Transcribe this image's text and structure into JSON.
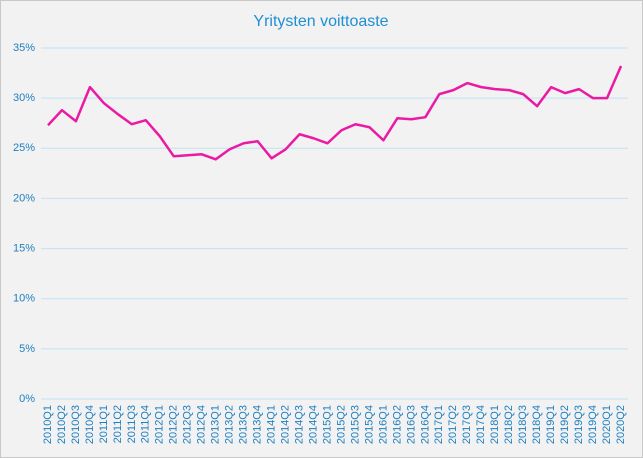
{
  "chart_data": {
    "type": "line",
    "title": "Yritysten voittoaste",
    "categories": [
      "2010Q1",
      "2010Q2",
      "2010Q3",
      "2010Q4",
      "2011Q1",
      "2011Q2",
      "2011Q3",
      "2011Q4",
      "2012Q1",
      "2012Q2",
      "2012Q3",
      "2012Q4",
      "2013Q1",
      "2013Q2",
      "2013Q3",
      "2013Q4",
      "2014Q1",
      "2014Q2",
      "2014Q3",
      "2014Q4",
      "2015Q1",
      "2015Q2",
      "2015Q3",
      "2015Q4",
      "2016Q1",
      "2016Q2",
      "2016Q3",
      "2016Q4",
      "2017Q1",
      "2017Q2",
      "2017Q3",
      "2017Q4",
      "2018Q1",
      "2018Q2",
      "2018Q3",
      "2018Q4",
      "2019Q1",
      "2019Q2",
      "2019Q3",
      "2019Q4",
      "2020Q1",
      "2020Q2"
    ],
    "values": [
      27.3,
      28.8,
      27.7,
      31.1,
      29.5,
      28.4,
      27.4,
      27.8,
      26.2,
      24.2,
      24.3,
      24.4,
      23.9,
      24.9,
      25.5,
      25.7,
      24.0,
      24.9,
      26.4,
      26.0,
      25.5,
      26.8,
      27.4,
      27.1,
      25.8,
      28.0,
      27.9,
      28.1,
      30.4,
      30.8,
      31.5,
      31.1,
      30.9,
      30.8,
      30.4,
      29.2,
      31.1,
      30.5,
      30.9,
      30.0,
      30.0,
      33.2
    ],
    "color": "#ea1aa5",
    "ylim": [
      0,
      35
    ],
    "yticks": [
      {
        "value": 0,
        "label": "0%"
      },
      {
        "value": 5,
        "label": "5%"
      },
      {
        "value": 10,
        "label": "10%"
      },
      {
        "value": 15,
        "label": "15%"
      },
      {
        "value": 20,
        "label": "20%"
      },
      {
        "value": 25,
        "label": "25%"
      },
      {
        "value": 30,
        "label": "30%"
      },
      {
        "value": 35,
        "label": "35%"
      }
    ],
    "grid": true
  }
}
